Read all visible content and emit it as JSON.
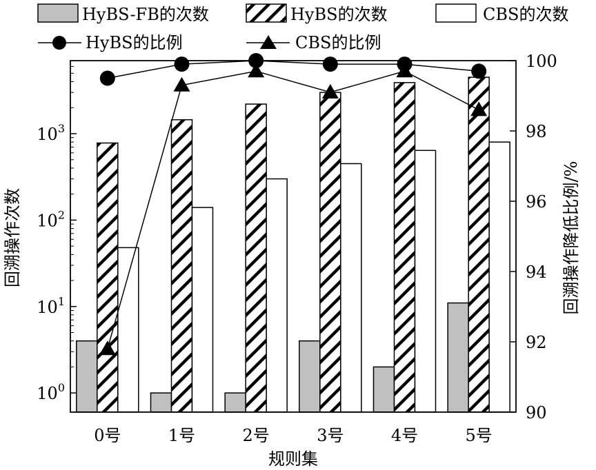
{
  "chart_data": {
    "type": "bar",
    "xlabel": "规则集",
    "ylabel_left": "回溯操作次数",
    "ylabel_right": "回溯操作降低比例/%",
    "categories": [
      "0号",
      "1号",
      "2号",
      "3号",
      "4号",
      "5号"
    ],
    "left_axis": {
      "scale": "log",
      "ylim": [
        0.6,
        7000
      ],
      "ticks": [
        1,
        10,
        100,
        1000
      ]
    },
    "right_axis": {
      "scale": "linear",
      "ylim": [
        90,
        100
      ],
      "ticks": [
        90,
        92,
        94,
        96,
        98,
        100
      ]
    },
    "bar_series": [
      {
        "name": "HyBS-FB的次数",
        "fill": "gray",
        "values": [
          4,
          1,
          1,
          4,
          2,
          11
        ]
      },
      {
        "name": "HyBS的次数",
        "fill": "hatch",
        "values": [
          780,
          1450,
          2200,
          3000,
          3900,
          4500
        ]
      },
      {
        "name": "CBS的次数",
        "fill": "white",
        "values": [
          48,
          140,
          300,
          450,
          640,
          800
        ]
      }
    ],
    "line_series": [
      {
        "name": "HyBS的比例",
        "marker": "circle",
        "values": [
          99.5,
          99.9,
          100.0,
          99.9,
          99.9,
          99.7
        ]
      },
      {
        "name": "CBS的比例",
        "marker": "triangle",
        "values": [
          91.8,
          99.3,
          99.7,
          99.1,
          99.7,
          98.6
        ]
      }
    ],
    "grid": false,
    "legend_position": "top"
  }
}
